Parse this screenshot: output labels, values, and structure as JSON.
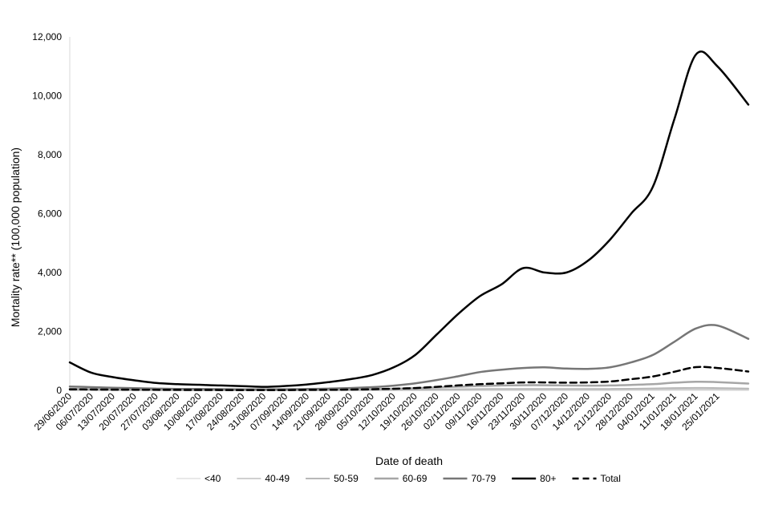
{
  "chart_data": {
    "type": "line",
    "xlabel": "Date of death",
    "ylabel": "Mortality rate** (100,000 population)",
    "ylim": [
      0,
      12000
    ],
    "yticks": [
      "0",
      "2,000",
      "4,000",
      "6,000",
      "8,000",
      "10,000",
      "12,000"
    ],
    "ytick_values": [
      0,
      2000,
      4000,
      6000,
      8000,
      10000,
      12000
    ],
    "x_start": "29/06/2020",
    "x_end": "04/02/2021",
    "xticks": [
      "29/06/2020",
      "06/07/2020",
      "13/07/2020",
      "20/07/2020",
      "27/07/2020",
      "03/08/2020",
      "10/08/2020",
      "17/08/2020",
      "24/08/2020",
      "31/08/2020",
      "07/09/2020",
      "14/09/2020",
      "21/09/2020",
      "28/09/2020",
      "05/10/2020",
      "12/10/2020",
      "19/10/2020",
      "26/10/2020",
      "02/11/2020",
      "09/11/2020",
      "16/11/2020",
      "23/11/2020",
      "30/11/2020",
      "07/12/2020",
      "14/12/2020",
      "21/12/2020",
      "28/12/2020",
      "04/01/2021",
      "11/01/2021",
      "18/01/2021",
      "25/01/2021"
    ],
    "x": [
      "29/06/2020",
      "06/07/2020",
      "13/07/2020",
      "20/07/2020",
      "27/07/2020",
      "03/08/2020",
      "10/08/2020",
      "17/08/2020",
      "24/08/2020",
      "31/08/2020",
      "07/09/2020",
      "14/09/2020",
      "21/09/2020",
      "28/09/2020",
      "05/10/2020",
      "12/10/2020",
      "19/10/2020",
      "26/10/2020",
      "02/11/2020",
      "09/11/2020",
      "16/11/2020",
      "23/11/2020",
      "30/11/2020",
      "07/12/2020",
      "14/12/2020",
      "21/12/2020",
      "28/12/2020",
      "04/01/2021",
      "11/01/2021",
      "18/01/2021",
      "25/01/2021",
      "04/02/2021"
    ],
    "legend_position": "bottom",
    "series": [
      {
        "name": "<40",
        "color": "#e8e8e8",
        "dash": "solid",
        "width": 2,
        "values": [
          3,
          2,
          2,
          2,
          1,
          1,
          1,
          1,
          1,
          1,
          1,
          1,
          1,
          1,
          2,
          2,
          2,
          3,
          3,
          4,
          4,
          4,
          4,
          4,
          4,
          4,
          5,
          5,
          6,
          7,
          7,
          6
        ]
      },
      {
        "name": "40-49",
        "color": "#d0d0d0",
        "dash": "solid",
        "width": 2,
        "values": [
          8,
          7,
          6,
          5,
          4,
          3,
          3,
          3,
          2,
          2,
          2,
          3,
          3,
          4,
          6,
          7,
          9,
          11,
          13,
          15,
          16,
          17,
          17,
          16,
          16,
          17,
          19,
          22,
          26,
          28,
          26,
          22
        ]
      },
      {
        "name": "50-59",
        "color": "#b8b8b8",
        "dash": "solid",
        "width": 2,
        "values": [
          20,
          17,
          14,
          12,
          10,
          8,
          7,
          7,
          6,
          6,
          6,
          7,
          9,
          12,
          16,
          20,
          26,
          32,
          38,
          44,
          48,
          50,
          50,
          48,
          46,
          48,
          55,
          65,
          78,
          85,
          78,
          62
        ]
      },
      {
        "name": "60-69",
        "color": "#a6a6a6",
        "dash": "solid",
        "width": 2.5,
        "values": [
          50,
          42,
          35,
          28,
          22,
          18,
          16,
          15,
          13,
          12,
          13,
          16,
          20,
          28,
          40,
          55,
          75,
          100,
          125,
          150,
          165,
          175,
          175,
          165,
          160,
          165,
          185,
          210,
          260,
          290,
          280,
          230
        ]
      },
      {
        "name": "70-79",
        "color": "#767676",
        "dash": "solid",
        "width": 2.5,
        "values": [
          130,
          110,
          90,
          75,
          60,
          50,
          45,
          40,
          36,
          35,
          38,
          45,
          60,
          80,
          110,
          160,
          240,
          350,
          480,
          620,
          700,
          760,
          780,
          740,
          730,
          780,
          950,
          1200,
          1650,
          2100,
          2200,
          1750
        ]
      },
      {
        "name": "80+",
        "color": "#000000",
        "dash": "solid",
        "width": 2.5,
        "values": [
          950,
          600,
          450,
          340,
          250,
          210,
          190,
          165,
          145,
          120,
          150,
          200,
          280,
          380,
          520,
          780,
          1200,
          1900,
          2600,
          3200,
          3600,
          4150,
          4000,
          4000,
          4400,
          5100,
          6000,
          6900,
          9200,
          11400,
          11000,
          9700
        ]
      },
      {
        "name": "Total",
        "color": "#000000",
        "dash": "dashed",
        "width": 2.5,
        "values": [
          35,
          30,
          25,
          22,
          18,
          15,
          13,
          12,
          11,
          10,
          12,
          15,
          20,
          28,
          38,
          55,
          80,
          120,
          170,
          210,
          240,
          270,
          270,
          260,
          270,
          300,
          380,
          470,
          630,
          790,
          760,
          640
        ]
      }
    ]
  }
}
